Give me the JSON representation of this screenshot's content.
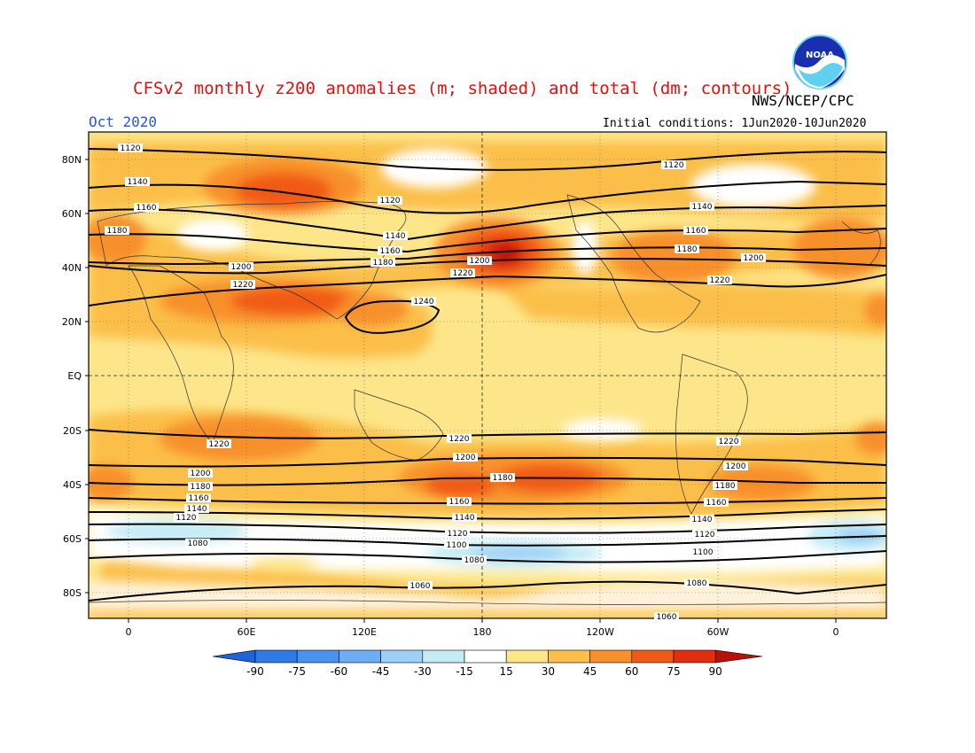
{
  "header": {
    "title": "CFSv2 monthly z200 anomalies (m; shaded) and total (dm; contours)",
    "agency": "NWS/NCEP/CPC",
    "month": "Oct 2020",
    "initial_conditions": "Initial conditions: 1Jun2020-10Jun2020",
    "logo_text": "NOAA"
  },
  "axes": {
    "lat_labels": [
      "80N",
      "60N",
      "40N",
      "20N",
      "EQ",
      "20S",
      "40S",
      "60S",
      "80S"
    ],
    "lon_labels": [
      "0",
      "60E",
      "120E",
      "180",
      "120W",
      "60W",
      "0"
    ]
  },
  "colorbar": {
    "labels": [
      "-90",
      "-75",
      "-60",
      "-45",
      "-30",
      "-15",
      "15",
      "30",
      "45",
      "60",
      "75",
      "90"
    ],
    "colors": [
      "#1e64d8",
      "#2f7ae6",
      "#4a92ee",
      "#6fadf3",
      "#9cd0f7",
      "#c4ecf5",
      "#ffffff",
      "#fde68a",
      "#fbbf4a",
      "#f8902c",
      "#f15a15",
      "#e32e0f",
      "#b8100a"
    ]
  },
  "contour_labels": [
    "1120",
    "1140",
    "1160",
    "1180",
    "1200",
    "1220",
    "1120",
    "1140",
    "1160",
    "1180",
    "1200",
    "1220",
    "1240",
    "1120",
    "1140",
    "1160",
    "1180",
    "1200",
    "1220",
    "1220",
    "1200",
    "1180",
    "1160",
    "1140",
    "1120",
    "1080",
    "1220",
    "1200",
    "1180",
    "1160",
    "1140",
    "1120",
    "1100",
    "1080",
    "1060",
    "1220",
    "1200",
    "1180",
    "1160",
    "1140",
    "1120",
    "1100",
    "1080",
    "1060"
  ]
}
